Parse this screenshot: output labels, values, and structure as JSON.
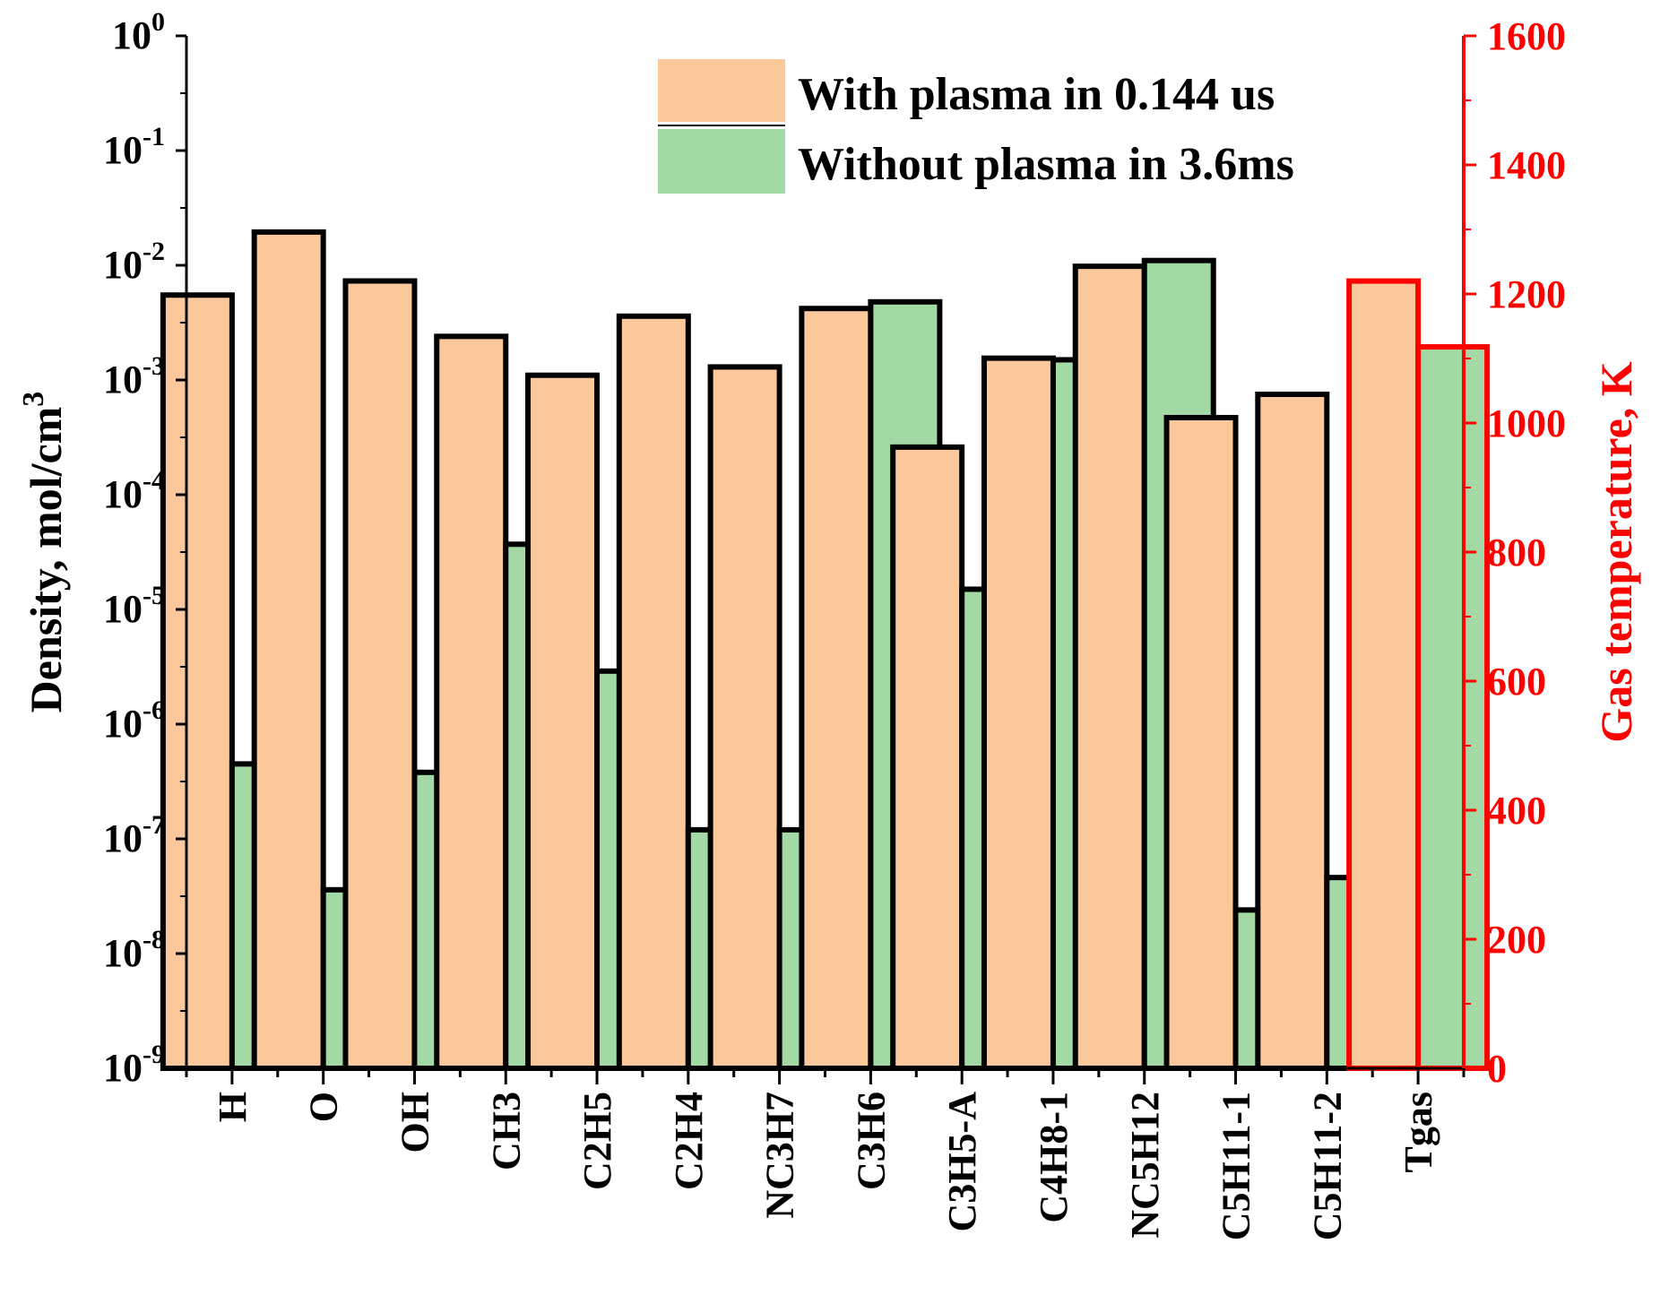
{
  "chart_data": {
    "type": "bar",
    "categories": [
      "H",
      "O",
      "OH",
      "CH3",
      "C2H5",
      "C2H4",
      "NC3H7",
      "C3H6",
      "C3H5-A",
      "C4H8-1",
      "NC5H12",
      "C5H11-1",
      "C5H11-2",
      "Tgas"
    ],
    "series": [
      {
        "name": "With plasma in 0.144 us",
        "color": "#FAC89B",
        "axis": "left",
        "values": [
          0.0055,
          0.0195,
          0.0073,
          0.0024,
          0.0011,
          0.0036,
          0.0013,
          0.0042,
          0.00026,
          0.00155,
          0.0098,
          0.00047,
          0.00075,
          null
        ]
      },
      {
        "name": "Without plasma in 3.6ms",
        "color": "#A3D9A5",
        "axis": "left",
        "values": [
          4.5e-07,
          3.6e-08,
          3.8e-07,
          3.7e-05,
          2.9e-06,
          1.2e-07,
          1.2e-07,
          0.0048,
          1.5e-05,
          0.0015,
          0.011,
          2.4e-08,
          4.6e-08,
          null
        ]
      }
    ],
    "tgas": {
      "category": "Tgas",
      "axis": "right",
      "with_plasma": 1220,
      "without_plasma": 1118
    },
    "left_axis": {
      "label_main": "Density, mol/cm",
      "label_sup": "3",
      "scale": "log",
      "ylim": [
        1e-09,
        1
      ],
      "tick_exponents": [
        "0",
        "-1",
        "-2",
        "-3",
        "-4",
        "-5",
        "-6",
        "-7",
        "-8",
        "-9"
      ],
      "tick_base": "10"
    },
    "right_axis": {
      "label": "Gas temperature, K",
      "scale": "linear",
      "ylim": [
        0,
        1600
      ],
      "ticks": [
        "1600",
        "1400",
        "1200",
        "1000",
        "800",
        "600",
        "400",
        "200",
        "0"
      ],
      "color": "#FF0000"
    },
    "legend": {
      "position": "top-right",
      "entries": [
        "With plasma in 0.144 us",
        "Without plasma in 3.6ms"
      ]
    }
  }
}
